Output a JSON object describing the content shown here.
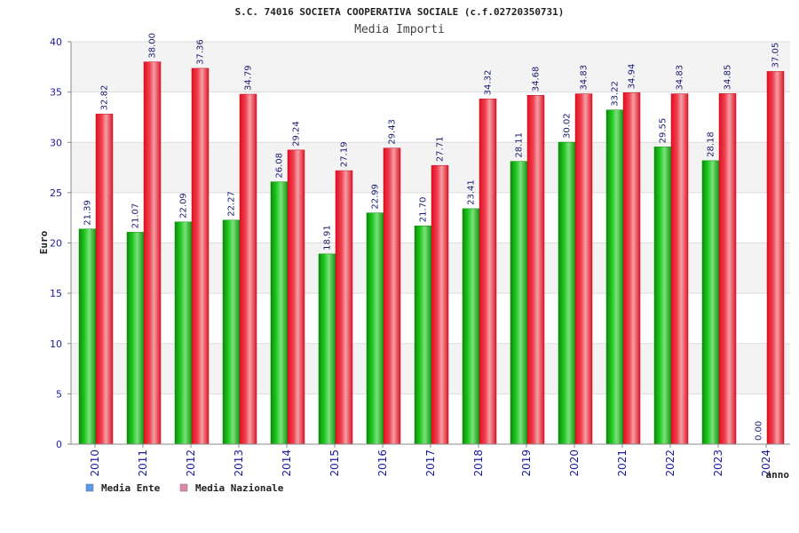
{
  "chart_data": {
    "type": "bar",
    "title": "S.C. 74016 SOCIETA COOPERATIVA SOCIALE (c.f.02720350731)",
    "subtitle": "Media Importi",
    "xlabel": "anno",
    "ylabel": "Euro",
    "ylim": [
      0,
      40
    ],
    "yticks": [
      0,
      5,
      10,
      15,
      20,
      25,
      30,
      35,
      40
    ],
    "grid": "horizontal",
    "legend_position": "bottom-left",
    "categories": [
      "2010",
      "2011",
      "2012",
      "2013",
      "2014",
      "2015",
      "2016",
      "2017",
      "2018",
      "2019",
      "2020",
      "2021",
      "2022",
      "2023",
      "2024"
    ],
    "series": [
      {
        "name": "Media Ente",
        "color": "#22bb22",
        "legend_color": "#5599ee",
        "values": [
          21.39,
          21.07,
          22.09,
          22.27,
          26.08,
          18.91,
          22.99,
          21.7,
          23.41,
          28.11,
          30.02,
          33.22,
          29.55,
          28.18,
          0.0
        ],
        "labels": [
          "21.39",
          "21.07",
          "22.09",
          "22.27",
          "26.08",
          "18.91",
          "22.99",
          "21.70",
          "23.41",
          "28.11",
          "30.02",
          "33.22",
          "29.55",
          "28.18",
          "0.00"
        ]
      },
      {
        "name": "Media Nazionale",
        "color": "#ee2233",
        "legend_color": "#dd88aa",
        "values": [
          32.82,
          38.0,
          37.36,
          34.79,
          29.24,
          27.19,
          29.43,
          27.71,
          34.32,
          34.68,
          34.83,
          34.94,
          34.83,
          34.85,
          37.05
        ],
        "labels": [
          "32.82",
          "38.00",
          "37.36",
          "34.79",
          "29.24",
          "27.19",
          "29.43",
          "27.71",
          "34.32",
          "34.68",
          "34.83",
          "34.94",
          "34.83",
          "34.85",
          "37.05"
        ]
      }
    ]
  }
}
